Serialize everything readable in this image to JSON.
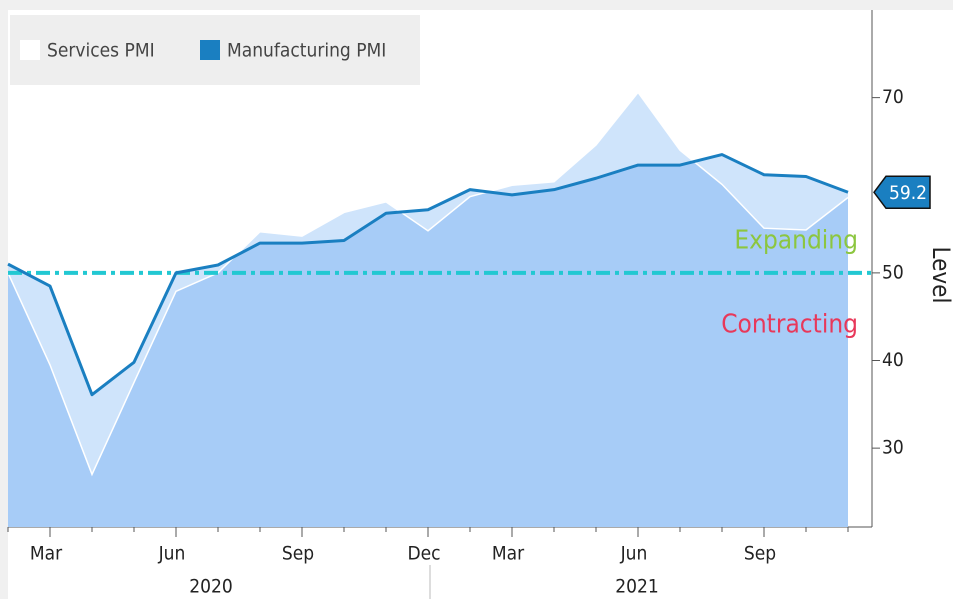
{
  "chart_data": {
    "type": "area-line",
    "categories": [
      null,
      "Mar",
      null,
      null,
      "Jun",
      null,
      null,
      "Sep",
      null,
      null,
      "Dec",
      null,
      "Mar",
      null,
      null,
      "Jun",
      null,
      null,
      "Sep",
      null,
      null
    ],
    "year_labels": [
      "2020",
      "2021"
    ],
    "series": [
      {
        "name": "Services PMI",
        "color": "#ffffff",
        "values": [
          50.0,
          39.5,
          27.0,
          37.5,
          47.9,
          50.0,
          54.7,
          54.2,
          56.9,
          58.1,
          54.8,
          58.7,
          60.0,
          60.4,
          64.6,
          70.6,
          64.0,
          60.1,
          55.1,
          54.9,
          58.6
        ]
      },
      {
        "name": "Manufacturing PMI",
        "color": "#1a7fc1",
        "values": [
          51.0,
          48.5,
          36.1,
          39.8,
          50.0,
          50.9,
          53.4,
          53.4,
          53.7,
          56.8,
          57.2,
          59.5,
          58.9,
          59.5,
          60.8,
          62.3,
          62.3,
          63.5,
          61.2,
          61.0,
          59.2
        ]
      }
    ],
    "ylim": [
      21,
      80
    ],
    "yticks": [
      30,
      40,
      50,
      70
    ],
    "y_label": "Level",
    "threshold": 50,
    "threshold_color": "#22c8d2",
    "annotations": [
      {
        "text": "Expanding",
        "color": "#8cc63f"
      },
      {
        "text": "Contracting",
        "color": "#e8385a"
      }
    ]
  }
}
